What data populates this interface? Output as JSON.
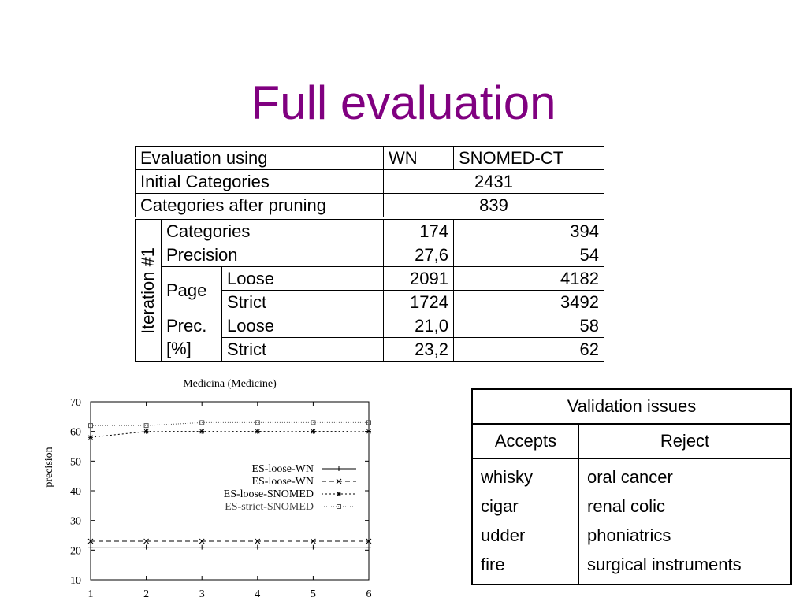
{
  "title": "Full evaluation",
  "eval_table": {
    "header": [
      "Evaluation using",
      "WN",
      "SNOMED-CT"
    ],
    "initial_categories": {
      "label": "Initial Categories",
      "value": "2431"
    },
    "categories_after_pruning": {
      "label": "Categories after pruning",
      "value": "839"
    },
    "iteration_label": "Iteration #1",
    "categories": {
      "label": "Categories",
      "wn": "174",
      "snomed": "394"
    },
    "precision": {
      "label": "Precision",
      "wn": "27,6",
      "snomed": "54"
    },
    "page": {
      "label": "Page",
      "loose": {
        "label": "Loose",
        "wn": "2091",
        "snomed": "4182"
      },
      "strict": {
        "label": "Strict",
        "wn": "1724",
        "snomed": "3492"
      }
    },
    "prec_pct": {
      "label_line1": "Prec.",
      "label_line2": "[%]",
      "loose": {
        "label": "Loose",
        "wn": "21,0",
        "snomed": "58"
      },
      "strict": {
        "label": "Strict",
        "wn": "23,2",
        "snomed": "62"
      }
    }
  },
  "chart_data": {
    "type": "line",
    "title": "Medicina (Medicine)",
    "xlabel": "",
    "ylabel": "precision",
    "x": [
      1,
      2,
      3,
      4,
      5,
      6
    ],
    "xlim": [
      1,
      6
    ],
    "ylim": [
      10,
      70
    ],
    "yticks": [
      10,
      20,
      30,
      40,
      50,
      60,
      70
    ],
    "grid": false,
    "legend_position": "center-right",
    "series": [
      {
        "name": "ES-loose-WN",
        "values": [
          21,
          21,
          21,
          21,
          21,
          21
        ],
        "style": "solid",
        "marker": "+"
      },
      {
        "name": "ES-loose-WN",
        "values": [
          23,
          23,
          23,
          23,
          23,
          23
        ],
        "style": "dashed",
        "marker": "x"
      },
      {
        "name": "ES-loose-SNOMED",
        "values": [
          58,
          60,
          60,
          60,
          60,
          60
        ],
        "style": "dotted",
        "marker": "*"
      },
      {
        "name": "ES-strict-SNOMED",
        "values": [
          62,
          62,
          63,
          63,
          63,
          63
        ],
        "style": "fine-dotted",
        "marker": "square"
      }
    ]
  },
  "validation": {
    "title": "Validation issues",
    "col_accepts": "Accepts",
    "col_reject": "Reject",
    "accepts": [
      "whisky",
      "cigar",
      "udder",
      "fire"
    ],
    "reject": [
      "oral cancer",
      "renal colic",
      "phoniatrics",
      "surgical instruments"
    ]
  }
}
